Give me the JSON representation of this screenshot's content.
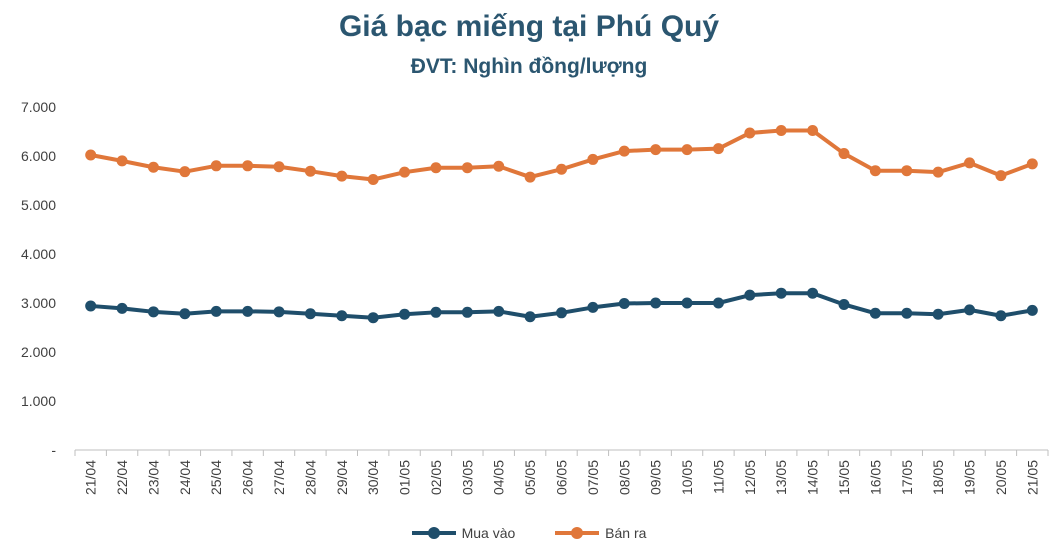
{
  "chart_data": {
    "type": "line",
    "title": "Giá bạc miếng tại Phú Quý",
    "subtitle": "ĐVT: Nghìn đồng/lượng",
    "categories": [
      "21/04",
      "22/04",
      "23/04",
      "24/04",
      "25/04",
      "26/04",
      "27/04",
      "28/04",
      "29/04",
      "30/04",
      "01/05",
      "02/05",
      "03/05",
      "04/05",
      "05/05",
      "06/05",
      "07/05",
      "08/05",
      "09/05",
      "10/05",
      "11/05",
      "12/05",
      "13/05",
      "14/05",
      "15/05",
      "16/05",
      "17/05",
      "18/05",
      "19/05",
      "20/05",
      "21/05"
    ],
    "series": [
      {
        "name": "Mua vào",
        "color": "#1f4e6b",
        "values": [
          2940,
          2890,
          2820,
          2780,
          2830,
          2830,
          2820,
          2780,
          2740,
          2700,
          2770,
          2810,
          2810,
          2830,
          2720,
          2800,
          2910,
          2990,
          3000,
          3000,
          3000,
          3160,
          3200,
          3200,
          2970,
          2790,
          2790,
          2770,
          2860,
          2740,
          2850
        ]
      },
      {
        "name": "Bán ra",
        "color": "#e0773a",
        "values": [
          6020,
          5900,
          5770,
          5680,
          5800,
          5800,
          5780,
          5690,
          5590,
          5520,
          5670,
          5760,
          5760,
          5790,
          5570,
          5730,
          5930,
          6100,
          6130,
          6130,
          6150,
          6470,
          6520,
          6520,
          6050,
          5700,
          5700,
          5670,
          5860,
          5600,
          5840
        ]
      }
    ],
    "y_ticks": [
      "-",
      "1.000",
      "2.000",
      "3.000",
      "4.000",
      "5.000",
      "6.000",
      "7.000"
    ],
    "ylim": [
      0,
      7000
    ],
    "grid": false,
    "legend_position": "bottom"
  }
}
